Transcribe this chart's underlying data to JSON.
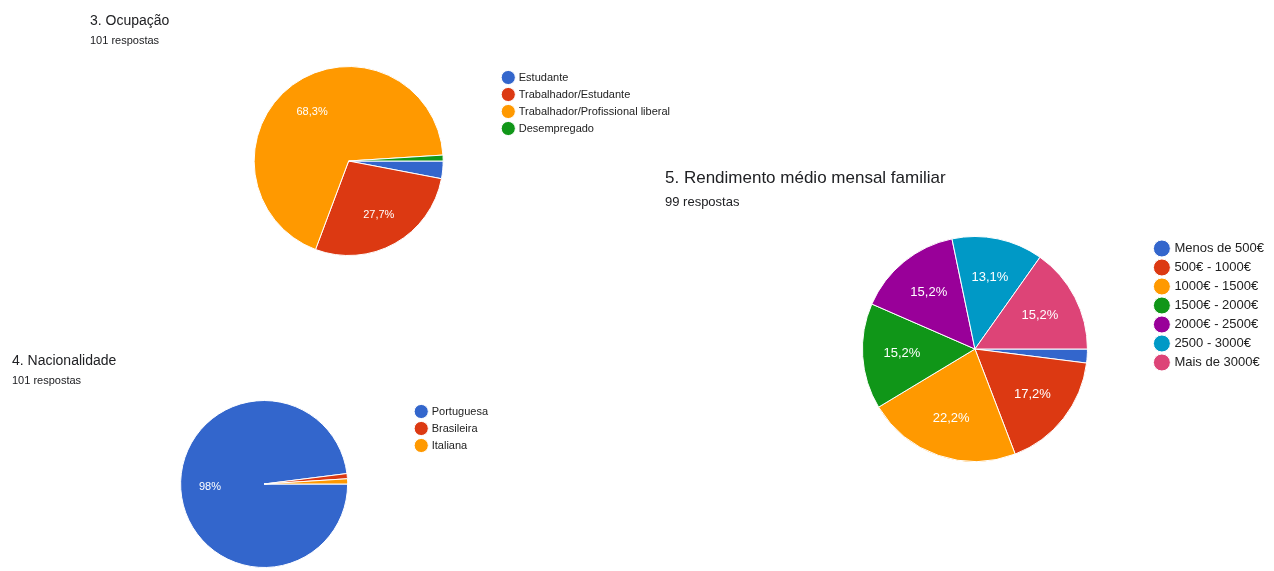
{
  "chart_data": [
    {
      "type": "pie",
      "title": "3. Ocupação",
      "subtitle": "101 respostas",
      "categories": [
        "Estudante",
        "Trabalhador/Estudante",
        "Trabalhador/Profissional liberal",
        "Desempregado"
      ],
      "values": [
        3.0,
        27.7,
        68.3,
        1.0
      ],
      "colors": [
        "#3366cc",
        "#dc3912",
        "#ff9900",
        "#109618"
      ],
      "value_labels": [
        null,
        "27,7%",
        "68,3%",
        null
      ],
      "legend": "right"
    },
    {
      "type": "pie",
      "title": "4. Nacionalidade",
      "subtitle": "101 respostas",
      "categories": [
        "Portuguesa",
        "Brasileira",
        "Italiana"
      ],
      "values": [
        98,
        1,
        1
      ],
      "colors": [
        "#3366cc",
        "#dc3912",
        "#ff9900"
      ],
      "value_labels": [
        "98%",
        null,
        null
      ],
      "legend": "right"
    },
    {
      "type": "pie",
      "title": "5. Rendimento médio mensal familiar",
      "subtitle": "99 respostas",
      "categories": [
        "Menos de 500€",
        "500€ - 1000€",
        "1000€ - 1500€",
        "1500€ - 2000€",
        "2000€ - 2500€",
        "2500 - 3000€",
        "Mais de 3000€"
      ],
      "values": [
        2.0,
        17.2,
        22.2,
        15.2,
        15.2,
        13.1,
        15.2
      ],
      "colors": [
        "#3366cc",
        "#dc3912",
        "#ff9900",
        "#109618",
        "#990099",
        "#0099c6",
        "#dd4477"
      ],
      "value_labels": [
        null,
        "17,2%",
        "22,2%",
        "15,2%",
        "15,2%",
        "13,1%",
        "15,2%"
      ],
      "legend": "right"
    }
  ]
}
